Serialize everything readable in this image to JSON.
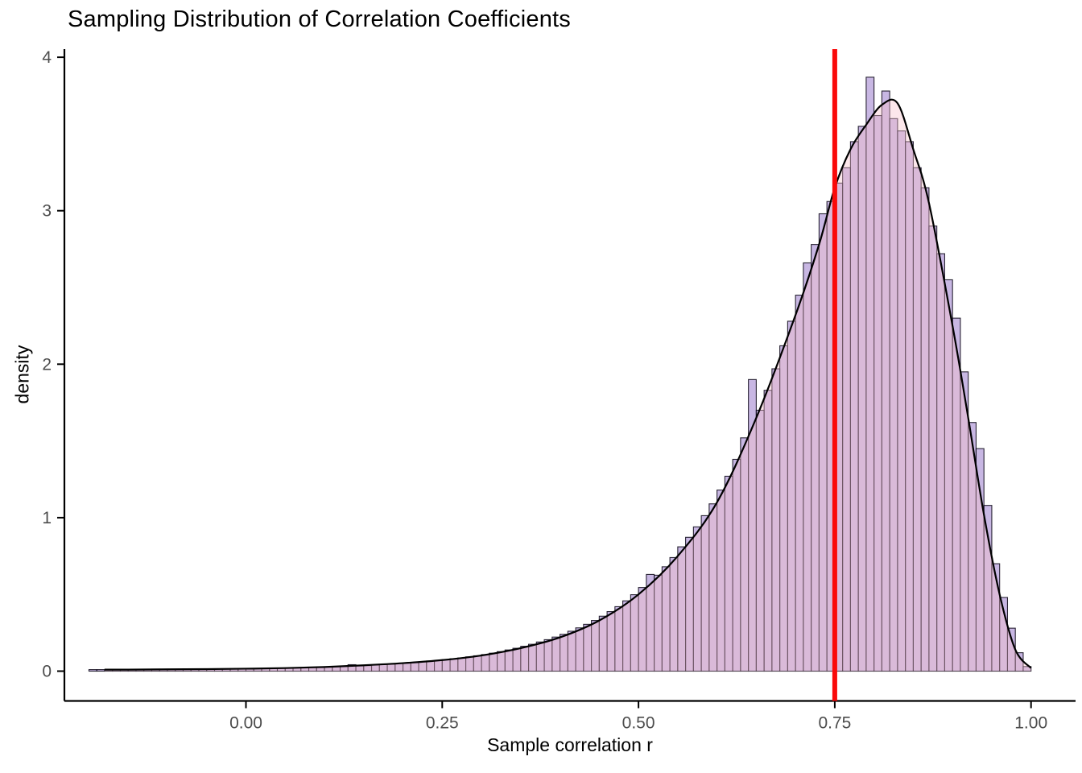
{
  "chart_data": {
    "type": "histogram",
    "title": "Sampling Distribution of Correlation Coefficients",
    "xlabel": "Sample correlation r",
    "ylabel": "density",
    "x_tick_values": [
      0,
      0.25,
      0.5,
      0.75,
      1.0
    ],
    "x_tick_labels": [
      "0.00",
      "0.25",
      "0.50",
      "0.75",
      "1.00"
    ],
    "y_tick_values": [
      0,
      1,
      2,
      3,
      4
    ],
    "y_tick_labels": [
      "0",
      "1",
      "2",
      "3",
      "4"
    ],
    "xlim": [
      -0.23,
      1.06
    ],
    "ylim": [
      0,
      4.05
    ],
    "grid": "off",
    "legend": "none",
    "red_line_x": 0.75,
    "histogram": {
      "bin_start": -0.2,
      "bin_width": 0.01,
      "heights": [
        0.01,
        0.01,
        0.011,
        0.01,
        0.012,
        0.011,
        0.01,
        0.012,
        0.013,
        0.012,
        0.012,
        0.013,
        0.014,
        0.012,
        0.013,
        0.014,
        0.015,
        0.013,
        0.014,
        0.015,
        0.015,
        0.016,
        0.017,
        0.018,
        0.02,
        0.02,
        0.021,
        0.022,
        0.024,
        0.026,
        0.027,
        0.029,
        0.031,
        0.042,
        0.034,
        0.036,
        0.04,
        0.043,
        0.046,
        0.05,
        0.053,
        0.057,
        0.061,
        0.066,
        0.07,
        0.075,
        0.081,
        0.086,
        0.093,
        0.1,
        0.108,
        0.117,
        0.127,
        0.138,
        0.149,
        0.162,
        0.175,
        0.19,
        0.205,
        0.222,
        0.24,
        0.26,
        0.282,
        0.305,
        0.33,
        0.358,
        0.388,
        0.42,
        0.458,
        0.498,
        0.545,
        0.63,
        0.625,
        0.68,
        0.74,
        0.81,
        0.872,
        0.94,
        1.013,
        1.09,
        1.18,
        1.27,
        1.38,
        1.52,
        1.9,
        1.7,
        1.83,
        1.97,
        2.12,
        2.28,
        2.45,
        2.66,
        2.78,
        2.98,
        3.06,
        3.18,
        3.28,
        3.45,
        3.55,
        3.87,
        3.62,
        3.78,
        3.6,
        3.52,
        3.45,
        3.28,
        3.15,
        2.9,
        2.72,
        2.55,
        2.3,
        1.95,
        1.62,
        1.45,
        1.08,
        0.7,
        0.48,
        0.28,
        0.12,
        0.03
      ]
    },
    "density_curve": {
      "x": [
        -0.18,
        -0.15,
        -0.1,
        -0.05,
        0.0,
        0.05,
        0.1,
        0.15,
        0.2,
        0.25,
        0.3,
        0.35,
        0.4,
        0.45,
        0.5,
        0.55,
        0.6,
        0.65,
        0.7,
        0.73,
        0.75,
        0.77,
        0.79,
        0.81,
        0.83,
        0.85,
        0.87,
        0.9,
        0.92,
        0.94,
        0.96,
        0.98,
        1.0
      ],
      "y": [
        0.01,
        0.01,
        0.012,
        0.013,
        0.016,
        0.02,
        0.027,
        0.038,
        0.052,
        0.072,
        0.102,
        0.15,
        0.22,
        0.33,
        0.5,
        0.75,
        1.1,
        1.65,
        2.32,
        2.78,
        3.15,
        3.4,
        3.56,
        3.69,
        3.7,
        3.4,
        3.05,
        2.25,
        1.65,
        1.02,
        0.5,
        0.14,
        0.02
      ]
    },
    "colors": {
      "bar_fill": "#9270c8",
      "bar_fill_alpha": 0.5,
      "bar_stroke": "#14101f",
      "bar_stroke_alpha": 0.9,
      "area_fill": "#f7bfca",
      "area_alpha": 0.38,
      "curve": "#000000",
      "red_line": "#fa0a0a",
      "axis": "#000000",
      "tick_label": "#4d4d4d"
    }
  }
}
